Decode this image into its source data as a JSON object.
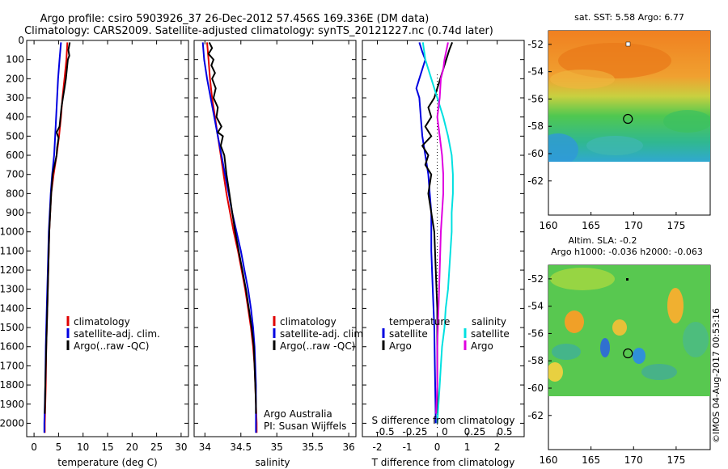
{
  "title": {
    "line1": "Argo profile: csiro 5903926_37 26-Dec-2012 57.456S 169.336E (DM data)",
    "line2": "Climatology: CARS2009. Satellite-adjusted climatology: synTS_20121227.nc (0.74d later)"
  },
  "colors": {
    "climatology": "#e00000",
    "satellite": "#0000e0",
    "argo": "#000000",
    "sat_salinity": "#00e0e0",
    "argo_salinity": "#e000e0"
  },
  "chart_data": [
    {
      "type": "line",
      "name": "temperature",
      "xlabel": "temperature (deg C)",
      "xlim": [
        -1.5,
        31.5
      ],
      "xticks": [
        0,
        5,
        10,
        15,
        20,
        25,
        30
      ],
      "ylim": [
        2070,
        0
      ],
      "yticks": [
        0,
        100,
        200,
        300,
        400,
        500,
        600,
        700,
        800,
        900,
        1000,
        1100,
        1200,
        1300,
        1400,
        1500,
        1600,
        1700,
        1800,
        1900,
        2000
      ],
      "legend": {
        "position": "lower-center",
        "entries": [
          "climatology",
          "satellite-adj. clim.",
          "Argo(..raw -QC)"
        ]
      },
      "series": [
        {
          "name": "climatology",
          "color": "#e00000",
          "points": [
            [
              6.8,
              10
            ],
            [
              6.6,
              100
            ],
            [
              6.2,
              200
            ],
            [
              5.8,
              300
            ],
            [
              5.5,
              400
            ],
            [
              5.1,
              500
            ],
            [
              4.6,
              600
            ],
            [
              4.0,
              700
            ],
            [
              3.5,
              800
            ],
            [
              3.3,
              900
            ],
            [
              3.1,
              1000
            ],
            [
              2.9,
              1200
            ],
            [
              2.7,
              1400
            ],
            [
              2.5,
              1600
            ],
            [
              2.4,
              1800
            ],
            [
              2.2,
              2000
            ],
            [
              2.2,
              2050
            ]
          ]
        },
        {
          "name": "satellite-adj. clim.",
          "color": "#0000e0",
          "points": [
            [
              5.5,
              10
            ],
            [
              5.2,
              100
            ],
            [
              4.9,
              200
            ],
            [
              4.7,
              300
            ],
            [
              4.5,
              400
            ],
            [
              4.3,
              500
            ],
            [
              4.1,
              600
            ],
            [
              3.7,
              700
            ],
            [
              3.4,
              800
            ],
            [
              3.2,
              900
            ],
            [
              3.0,
              1000
            ],
            [
              2.8,
              1200
            ],
            [
              2.6,
              1400
            ],
            [
              2.4,
              1600
            ],
            [
              2.3,
              1800
            ],
            [
              2.1,
              2000
            ],
            [
              2.1,
              2050
            ]
          ]
        },
        {
          "name": "Argo(..raw -QC)",
          "color": "#000000",
          "points": [
            [
              7.3,
              10
            ],
            [
              7.0,
              50
            ],
            [
              7.2,
              80
            ],
            [
              6.9,
              100
            ],
            [
              6.7,
              150
            ],
            [
              6.5,
              200
            ],
            [
              6.2,
              250
            ],
            [
              5.9,
              300
            ],
            [
              5.6,
              350
            ],
            [
              5.4,
              400
            ],
            [
              5.2,
              450
            ],
            [
              4.6,
              480
            ],
            [
              5.0,
              510
            ],
            [
              4.7,
              560
            ],
            [
              4.6,
              600
            ],
            [
              4.2,
              650
            ],
            [
              3.8,
              700
            ],
            [
              3.5,
              800
            ],
            [
              3.3,
              900
            ],
            [
              3.1,
              1000
            ],
            [
              2.9,
              1200
            ],
            [
              2.7,
              1400
            ],
            [
              2.5,
              1600
            ],
            [
              2.3,
              1800
            ],
            [
              2.2,
              1950
            ]
          ]
        }
      ]
    },
    {
      "type": "line",
      "name": "salinity",
      "xlabel": "salinity",
      "xlim": [
        33.85,
        36.1
      ],
      "xticks": [
        34,
        34.5,
        35,
        35.5,
        36
      ],
      "ylim": [
        2070,
        0
      ],
      "legend": {
        "position": "lower-center",
        "entries": [
          "climatology",
          "satellite-adj. clim.",
          "Argo(..raw -QC)"
        ]
      },
      "annotation": [
        "Argo Australia",
        "PI: Susan Wijffels"
      ],
      "series": [
        {
          "name": "climatology",
          "color": "#e00000",
          "points": [
            [
              34.03,
              10
            ],
            [
              34.05,
              100
            ],
            [
              34.07,
              200
            ],
            [
              34.1,
              300
            ],
            [
              34.14,
              400
            ],
            [
              34.18,
              500
            ],
            [
              34.22,
              600
            ],
            [
              34.26,
              700
            ],
            [
              34.3,
              800
            ],
            [
              34.35,
              900
            ],
            [
              34.4,
              1000
            ],
            [
              34.46,
              1100
            ],
            [
              34.51,
              1200
            ],
            [
              34.56,
              1300
            ],
            [
              34.6,
              1400
            ],
            [
              34.64,
              1500
            ],
            [
              34.67,
              1600
            ],
            [
              34.69,
              1700
            ],
            [
              34.7,
              1800
            ],
            [
              34.71,
              1900
            ],
            [
              34.72,
              2000
            ],
            [
              34.72,
              2050
            ]
          ]
        },
        {
          "name": "satellite-adj. clim.",
          "color": "#0000e0",
          "points": [
            [
              33.97,
              10
            ],
            [
              33.99,
              100
            ],
            [
              34.03,
              200
            ],
            [
              34.08,
              300
            ],
            [
              34.13,
              400
            ],
            [
              34.18,
              500
            ],
            [
              34.23,
              600
            ],
            [
              34.28,
              700
            ],
            [
              34.33,
              800
            ],
            [
              34.38,
              900
            ],
            [
              34.44,
              1000
            ],
            [
              34.5,
              1100
            ],
            [
              34.55,
              1200
            ],
            [
              34.6,
              1300
            ],
            [
              34.64,
              1400
            ],
            [
              34.67,
              1500
            ],
            [
              34.69,
              1600
            ],
            [
              34.7,
              1700
            ],
            [
              34.71,
              1800
            ],
            [
              34.71,
              1900
            ],
            [
              34.71,
              2050
            ]
          ]
        },
        {
          "name": "Argo(..raw -QC)",
          "color": "#000000",
          "points": [
            [
              34.06,
              10
            ],
            [
              34.1,
              40
            ],
            [
              34.05,
              70
            ],
            [
              34.12,
              100
            ],
            [
              34.09,
              130
            ],
            [
              34.14,
              170
            ],
            [
              34.1,
              200
            ],
            [
              34.15,
              250
            ],
            [
              34.12,
              300
            ],
            [
              34.18,
              350
            ],
            [
              34.16,
              400
            ],
            [
              34.23,
              450
            ],
            [
              34.18,
              480
            ],
            [
              34.25,
              500
            ],
            [
              34.22,
              550
            ],
            [
              34.27,
              600
            ],
            [
              34.3,
              700
            ],
            [
              34.34,
              800
            ],
            [
              34.38,
              900
            ],
            [
              34.42,
              1000
            ],
            [
              34.47,
              1100
            ],
            [
              34.52,
              1200
            ],
            [
              34.57,
              1300
            ],
            [
              34.61,
              1400
            ],
            [
              34.65,
              1500
            ],
            [
              34.68,
              1600
            ],
            [
              34.69,
              1700
            ],
            [
              34.7,
              1800
            ],
            [
              34.71,
              1900
            ],
            [
              34.71,
              1950
            ]
          ]
        }
      ]
    },
    {
      "type": "line",
      "name": "difference",
      "xlabel": "T difference from climatology",
      "xlabel2": "S difference from climatology",
      "xlim": [
        -2.5,
        2.9
      ],
      "xticks": [
        -2,
        -1,
        0,
        1,
        2
      ],
      "xticks2": [
        -0.5,
        -0.25,
        0,
        0.25,
        0.5
      ],
      "xticks2_labels": [
        "-0.5",
        "-0.25",
        "0",
        "0.25",
        "0.5"
      ],
      "ylim": [
        2070,
        0
      ],
      "legend": {
        "position": "lower-center",
        "headers": [
          "temperature",
          "salinity"
        ],
        "entries": [
          "satellite",
          "Argo",
          "satellite",
          "Argo"
        ]
      },
      "series": [
        {
          "name": "temperature satellite",
          "color": "#0000e0",
          "points": [
            [
              -0.6,
              10
            ],
            [
              -0.5,
              60
            ],
            [
              -0.4,
              100
            ],
            [
              -0.5,
              150
            ],
            [
              -0.6,
              200
            ],
            [
              -0.7,
              250
            ],
            [
              -0.6,
              300
            ],
            [
              -0.55,
              400
            ],
            [
              -0.5,
              500
            ],
            [
              -0.4,
              600
            ],
            [
              -0.3,
              700
            ],
            [
              -0.25,
              800
            ],
            [
              -0.2,
              900
            ],
            [
              -0.2,
              1100
            ],
            [
              -0.15,
              1300
            ],
            [
              -0.1,
              1500
            ],
            [
              -0.08,
              1700
            ],
            [
              -0.06,
              1900
            ],
            [
              -0.05,
              2000
            ]
          ]
        },
        {
          "name": "temperature Argo",
          "color": "#000000",
          "points": [
            [
              0.5,
              10
            ],
            [
              0.4,
              50
            ],
            [
              0.3,
              100
            ],
            [
              0.1,
              200
            ],
            [
              0.0,
              250
            ],
            [
              -0.1,
              300
            ],
            [
              -0.3,
              350
            ],
            [
              -0.2,
              400
            ],
            [
              -0.4,
              450
            ],
            [
              -0.2,
              500
            ],
            [
              -0.5,
              550
            ],
            [
              -0.3,
              600
            ],
            [
              -0.4,
              650
            ],
            [
              -0.2,
              700
            ],
            [
              -0.3,
              800
            ],
            [
              -0.2,
              900
            ],
            [
              -0.1,
              1000
            ],
            [
              -0.05,
              1200
            ],
            [
              0.0,
              1400
            ],
            [
              0.0,
              1600
            ],
            [
              0.0,
              1800
            ],
            [
              0.0,
              1950
            ]
          ]
        },
        {
          "name": "salinity satellite",
          "color": "#00e0e0",
          "points": [
            [
              -0.12,
              10
            ],
            [
              -0.1,
              100
            ],
            [
              -0.05,
              200
            ],
            [
              0.0,
              300
            ],
            [
              0.05,
              400
            ],
            [
              0.09,
              500
            ],
            [
              0.12,
              600
            ],
            [
              0.13,
              700
            ],
            [
              0.13,
              800
            ],
            [
              0.12,
              900
            ],
            [
              0.12,
              1000
            ],
            [
              0.11,
              1100
            ],
            [
              0.1,
              1200
            ],
            [
              0.09,
              1300
            ],
            [
              0.07,
              1400
            ],
            [
              0.06,
              1500
            ],
            [
              0.04,
              1600
            ],
            [
              0.03,
              1700
            ],
            [
              0.02,
              1800
            ],
            [
              0.01,
              1900
            ],
            [
              0.0,
              2000
            ]
          ]
        },
        {
          "name": "salinity Argo",
          "color": "#e000e0",
          "points": [
            [
              0.09,
              10
            ],
            [
              0.06,
              100
            ],
            [
              0.05,
              150
            ],
            [
              0.03,
              200
            ],
            [
              0.02,
              300
            ],
            [
              0.0,
              400
            ],
            [
              0.02,
              500
            ],
            [
              0.04,
              600
            ],
            [
              0.05,
              700
            ],
            [
              0.05,
              800
            ],
            [
              0.04,
              900
            ],
            [
              0.03,
              1000
            ],
            [
              0.02,
              1200
            ],
            [
              0.01,
              1400
            ],
            [
              0.0,
              1600
            ],
            [
              0.0,
              1800
            ],
            [
              -0.01,
              1950
            ]
          ]
        }
      ]
    },
    {
      "type": "heatmap",
      "name": "sst map",
      "title": "sat. SST: 5.58 Argo: 6.77",
      "xlim": [
        160,
        179
      ],
      "ylim": [
        -64.5,
        -51
      ],
      "xticks": [
        160,
        165,
        170,
        175
      ],
      "yticks": [
        -52,
        -54,
        -56,
        -58,
        -60,
        -62
      ],
      "data_extent_lat": [
        -51,
        -60
      ],
      "argo_position": [
        169.336,
        -57.456
      ]
    },
    {
      "type": "heatmap",
      "name": "sla map",
      "title": "Altim. SLA: -0.2",
      "title2": "Argo h1000: -0.036 h2000: -0.063",
      "xlim": [
        160,
        179
      ],
      "ylim": [
        -64.5,
        -51
      ],
      "xticks": [
        160,
        165,
        170,
        175
      ],
      "yticks": [
        -52,
        -54,
        -56,
        -58,
        -60,
        -62
      ],
      "data_extent_lat": [
        -51,
        -60
      ],
      "argo_position": [
        169.336,
        -57.456
      ]
    }
  ],
  "watermark": "©IMOS 04-Aug-2017 00:53:16"
}
